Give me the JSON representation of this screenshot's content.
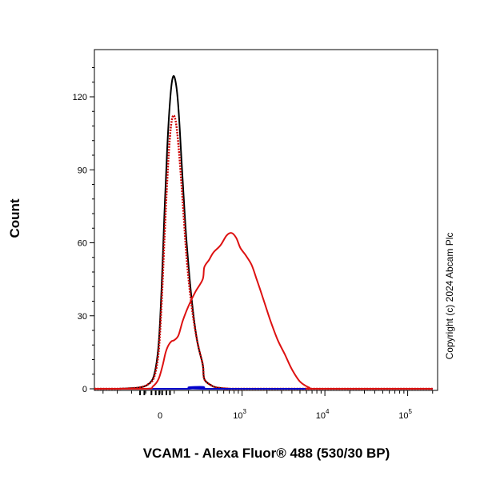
{
  "chart_data": {
    "type": "line",
    "title": "",
    "xlabel": "VCAM1 - Alexa Fluor® 488 (530/30 BP)",
    "ylabel": "Count",
    "x_scale": "biexponential",
    "xlim": [
      -800,
      200000
    ],
    "ylim": [
      0,
      140
    ],
    "y_ticks": [
      0,
      30,
      60,
      90,
      120
    ],
    "x_ticks": [
      {
        "value": 0,
        "base": "0",
        "exp": ""
      },
      {
        "value": 1000,
        "base": "10",
        "exp": "3"
      },
      {
        "value": 10000,
        "base": "10",
        "exp": "4"
      },
      {
        "value": 100000,
        "base": "10",
        "exp": "5"
      }
    ],
    "grid": false,
    "annotation": "Copyright (c) 2024 Abcam Plc",
    "series": [
      {
        "color": "#000000",
        "style": "solid",
        "x": [
          -800,
          -300,
          -150,
          -80,
          -40,
          -10,
          10,
          30,
          50,
          70,
          90,
          110,
          130,
          150,
          170,
          190,
          220,
          260,
          300,
          350,
          420,
          500,
          700,
          1000,
          200000
        ],
        "y": [
          0,
          0,
          0.5,
          2,
          6,
          18,
          40,
          70,
          98,
          118,
          128,
          126,
          115,
          95,
          75,
          58,
          38,
          20,
          10,
          4,
          1.5,
          0.5,
          0,
          0,
          0
        ]
      },
      {
        "color": "#cc0000",
        "style": "dotted",
        "x": [
          -800,
          -300,
          -150,
          -80,
          -40,
          -10,
          10,
          30,
          50,
          70,
          90,
          110,
          130,
          150,
          170,
          190,
          220,
          260,
          300,
          350,
          420,
          500,
          700,
          1000,
          200000
        ],
        "y": [
          0,
          0,
          0.5,
          2,
          5,
          15,
          34,
          60,
          85,
          104,
          112,
          110,
          100,
          85,
          68,
          52,
          35,
          20,
          10,
          4,
          1.5,
          0.5,
          0,
          0,
          0
        ]
      },
      {
        "color": "#0000cc",
        "style": "solid",
        "x": [
          -800,
          180,
          200,
          250,
          300,
          350,
          400,
          200000
        ],
        "y": [
          0,
          0,
          0.6,
          0.8,
          0.8,
          0.6,
          0,
          0
        ]
      },
      {
        "color": "#dd1111",
        "style": "solid",
        "x": [
          -800,
          -100,
          -50,
          -10,
          20,
          40,
          60,
          80,
          100,
          130,
          160,
          200,
          250,
          300,
          350,
          400,
          450,
          550,
          650,
          750,
          850,
          950,
          1100,
          1300,
          1500,
          1800,
          2200,
          2700,
          3300,
          4000,
          5000,
          6500,
          8000,
          200000
        ],
        "y": [
          0,
          0,
          1,
          4,
          10,
          15,
          18,
          19.5,
          20,
          22,
          28,
          34,
          40,
          45,
          50,
          53,
          56,
          59,
          63,
          64,
          62,
          58,
          55,
          51,
          45,
          37,
          28,
          20,
          14,
          8,
          3,
          0.5,
          0,
          0
        ]
      }
    ]
  }
}
